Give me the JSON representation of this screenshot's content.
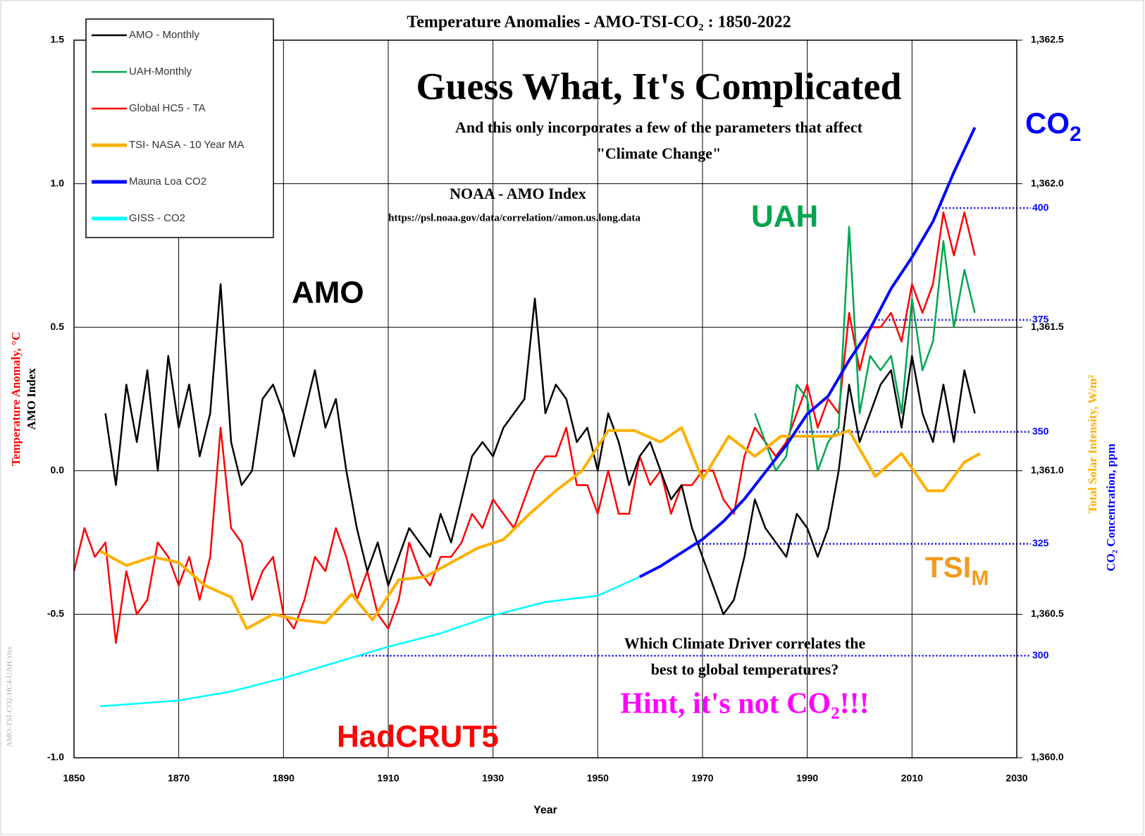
{
  "chart_data": {
    "type": "line",
    "title": "Temperature Anomalies - AMO-TSI-CO₂ : 1850-2022",
    "x_label": "Year",
    "y_label": "Temperature Anomaly, °C",
    "y_label_2": "AMO Index",
    "y2_label": "Total Solar Intensity, W/m²",
    "y3_label": "CO₂ Concentration, ppm",
    "watermark": "AMO-TSI-CO2-HC4-UAH.xlsx",
    "legend": "upper left",
    "grid": true,
    "xlim": [
      1850,
      2030
    ],
    "xticks": [
      1850,
      1870,
      1890,
      1910,
      1930,
      1950,
      1970,
      1990,
      2010,
      2030
    ],
    "ylim": [
      -1.0,
      1.5
    ],
    "yticks": [
      {
        "value": -1.0,
        "label": "-1.0"
      },
      -0.5,
      {
        "value": 0,
        "label": "0.0"
      },
      0.5,
      {
        "value": 1.0,
        "label": "1.0"
      },
      1.5
    ],
    "y2lim": [
      1360.0,
      1362.5
    ],
    "y2ticks": [
      {
        "value": 1360.0,
        "label": "1,360.0"
      },
      {
        "value": 1360.5,
        "label": "1,360.5"
      },
      {
        "value": 1361.0,
        "label": "1,361.0"
      },
      {
        "value": 1361.5,
        "label": "1,361.5"
      },
      {
        "value": 1362.0,
        "label": "1,362.0"
      },
      {
        "value": 1362.5,
        "label": "1,362.5"
      }
    ],
    "y3lim": [
      277.2,
      437.5
    ],
    "y3ticks": [
      300,
      325,
      350,
      375,
      400
    ],
    "series": [
      {
        "name": "AMO - Monthly",
        "color": "#000000",
        "x": [
          1856,
          1858,
          1860,
          1862,
          1864,
          1866,
          1868,
          1870,
          1872,
          1874,
          1876,
          1878,
          1880,
          1882,
          1884,
          1886,
          1888,
          1890,
          1892,
          1894,
          1896,
          1898,
          1900,
          1902,
          1904,
          1906,
          1908,
          1910,
          1912,
          1914,
          1916,
          1918,
          1920,
          1922,
          1924,
          1926,
          1928,
          1930,
          1932,
          1934,
          1936,
          1938,
          1940,
          1942,
          1944,
          1946,
          1948,
          1950,
          1952,
          1954,
          1956,
          1958,
          1960,
          1962,
          1964,
          1966,
          1968,
          1970,
          1972,
          1974,
          1976,
          1978,
          1980,
          1982,
          1984,
          1986,
          1988,
          1990,
          1992,
          1994,
          1996,
          1998,
          2000,
          2002,
          2004,
          2006,
          2008,
          2010,
          2012,
          2014,
          2016,
          2018,
          2020,
          2022
        ],
        "values": [
          0.2,
          -0.05,
          0.3,
          0.1,
          0.35,
          0.0,
          0.4,
          0.15,
          0.3,
          0.05,
          0.2,
          0.65,
          0.1,
          -0.05,
          0.0,
          0.25,
          0.3,
          0.2,
          0.05,
          0.2,
          0.35,
          0.15,
          0.25,
          0.0,
          -0.2,
          -0.35,
          -0.25,
          -0.4,
          -0.3,
          -0.2,
          -0.25,
          -0.3,
          -0.15,
          -0.25,
          -0.1,
          0.05,
          0.1,
          0.05,
          0.15,
          0.2,
          0.25,
          0.6,
          0.2,
          0.3,
          0.25,
          0.1,
          0.15,
          0.0,
          0.2,
          0.1,
          -0.05,
          0.05,
          0.1,
          0.0,
          -0.1,
          -0.05,
          -0.2,
          -0.3,
          -0.4,
          -0.5,
          -0.45,
          -0.3,
          -0.1,
          -0.2,
          -0.25,
          -0.3,
          -0.15,
          -0.2,
          -0.3,
          -0.2,
          0.0,
          0.3,
          0.1,
          0.2,
          0.3,
          0.35,
          0.15,
          0.4,
          0.2,
          0.1,
          0.3,
          0.1,
          0.35,
          0.2
        ]
      },
      {
        "name": "UAH-Monthly",
        "color": "#00a550",
        "x": [
          1980,
          1982,
          1984,
          1986,
          1988,
          1990,
          1992,
          1994,
          1996,
          1998,
          2000,
          2002,
          2004,
          2006,
          2008,
          2010,
          2012,
          2014,
          2016,
          2018,
          2020,
          2022
        ],
        "values": [
          0.2,
          0.1,
          0.0,
          0.05,
          0.3,
          0.25,
          0.0,
          0.1,
          0.15,
          0.85,
          0.2,
          0.4,
          0.35,
          0.4,
          0.2,
          0.6,
          0.35,
          0.45,
          0.8,
          0.5,
          0.7,
          0.55
        ]
      },
      {
        "name": "Global HC5 - TA",
        "color": "#ff0000",
        "x": [
          1850,
          1852,
          1854,
          1856,
          1858,
          1860,
          1862,
          1864,
          1866,
          1868,
          1870,
          1872,
          1874,
          1876,
          1878,
          1880,
          1882,
          1884,
          1886,
          1888,
          1890,
          1892,
          1894,
          1896,
          1898,
          1900,
          1902,
          1904,
          1906,
          1908,
          1910,
          1912,
          1914,
          1916,
          1918,
          1920,
          1922,
          1924,
          1926,
          1928,
          1930,
          1932,
          1934,
          1936,
          1938,
          1940,
          1942,
          1944,
          1946,
          1948,
          1950,
          1952,
          1954,
          1956,
          1958,
          1960,
          1962,
          1964,
          1966,
          1968,
          1970,
          1972,
          1974,
          1976,
          1978,
          1980,
          1982,
          1984,
          1986,
          1988,
          1990,
          1992,
          1994,
          1996,
          1998,
          2000,
          2002,
          2004,
          2006,
          2008,
          2010,
          2012,
          2014,
          2016,
          2018,
          2020,
          2022
        ],
        "values": [
          -0.35,
          -0.2,
          -0.3,
          -0.25,
          -0.6,
          -0.35,
          -0.5,
          -0.45,
          -0.25,
          -0.3,
          -0.4,
          -0.3,
          -0.45,
          -0.3,
          0.15,
          -0.2,
          -0.25,
          -0.45,
          -0.35,
          -0.3,
          -0.5,
          -0.55,
          -0.45,
          -0.3,
          -0.35,
          -0.2,
          -0.3,
          -0.45,
          -0.35,
          -0.5,
          -0.55,
          -0.45,
          -0.25,
          -0.35,
          -0.4,
          -0.3,
          -0.3,
          -0.25,
          -0.15,
          -0.2,
          -0.1,
          -0.15,
          -0.2,
          -0.1,
          0.0,
          0.05,
          0.05,
          0.15,
          -0.05,
          -0.05,
          -0.15,
          0.0,
          -0.15,
          -0.15,
          0.05,
          -0.05,
          0.0,
          -0.15,
          -0.05,
          -0.05,
          0.0,
          0.0,
          -0.1,
          -0.15,
          0.05,
          0.15,
          0.1,
          0.05,
          0.1,
          0.2,
          0.3,
          0.15,
          0.25,
          0.2,
          0.55,
          0.35,
          0.5,
          0.5,
          0.55,
          0.45,
          0.65,
          0.55,
          0.65,
          0.9,
          0.75,
          0.9,
          0.75
        ]
      },
      {
        "name": "TSI- NASA - 10 Year MA",
        "color": "#ffb000",
        "axis": "y2",
        "x": [
          1855,
          1860,
          1865,
          1870,
          1875,
          1880,
          1883,
          1888,
          1893,
          1898,
          1903,
          1907,
          1912,
          1917,
          1922,
          1927,
          1932,
          1937,
          1942,
          1947,
          1952,
          1957,
          1962,
          1966,
          1970,
          1975,
          1980,
          1985,
          1990,
          1995,
          1998,
          2003,
          2008,
          2013,
          2016,
          2020,
          2023
        ],
        "values": [
          1360.72,
          1360.67,
          1360.7,
          1360.68,
          1360.6,
          1360.56,
          1360.45,
          1360.5,
          1360.48,
          1360.47,
          1360.57,
          1360.48,
          1360.62,
          1360.63,
          1360.68,
          1360.73,
          1360.76,
          1360.85,
          1360.93,
          1361.0,
          1361.14,
          1361.14,
          1361.1,
          1361.15,
          1360.97,
          1361.12,
          1361.05,
          1361.12,
          1361.12,
          1361.12,
          1361.14,
          1360.98,
          1361.06,
          1360.93,
          1360.93,
          1361.03,
          1361.06
        ]
      },
      {
        "name": "Mauna Loa CO2",
        "color": "#0000ff",
        "axis": "y3",
        "x": [
          1958,
          1962,
          1966,
          1970,
          1974,
          1978,
          1982,
          1986,
          1990,
          1994,
          1998,
          2002,
          2006,
          2010,
          2014,
          2018,
          2022
        ],
        "values": [
          317.6,
          320,
          323,
          326,
          330,
          335,
          341,
          347,
          354,
          358,
          366,
          373,
          382,
          389,
          397,
          408,
          418
        ]
      },
      {
        "name": "GISS - CO2",
        "color": "#00ffff",
        "axis": "y3",
        "x": [
          1855,
          1870,
          1880,
          1890,
          1900,
          1910,
          1920,
          1930,
          1940,
          1950,
          1958
        ],
        "values": [
          288.7,
          290,
          292,
          295,
          298.5,
          302,
          305,
          309,
          312,
          313.4,
          317.6
        ]
      }
    ],
    "annotations": {
      "headline": "Guess What, It's Complicated",
      "subline_1": "And this only incorporates a few of the parameters that affect",
      "subline_2": "\"Climate Change\"",
      "source": "NOAA - AMO Index",
      "url": "https://psl.noaa.gov/data/correlation//amon.us.long.data",
      "question_1": "Which Climate Driver correlates the",
      "question_2": "best to global temperatures?",
      "hint": "Hint, it's not CO₂!!!",
      "amo": "AMO",
      "uah": "UAH",
      "hadcrut": "HadCRUT5",
      "co2": {
        "text": "CO",
        "sub": "2"
      },
      "tsi": {
        "text": "TSI",
        "sub": "M"
      }
    }
  }
}
